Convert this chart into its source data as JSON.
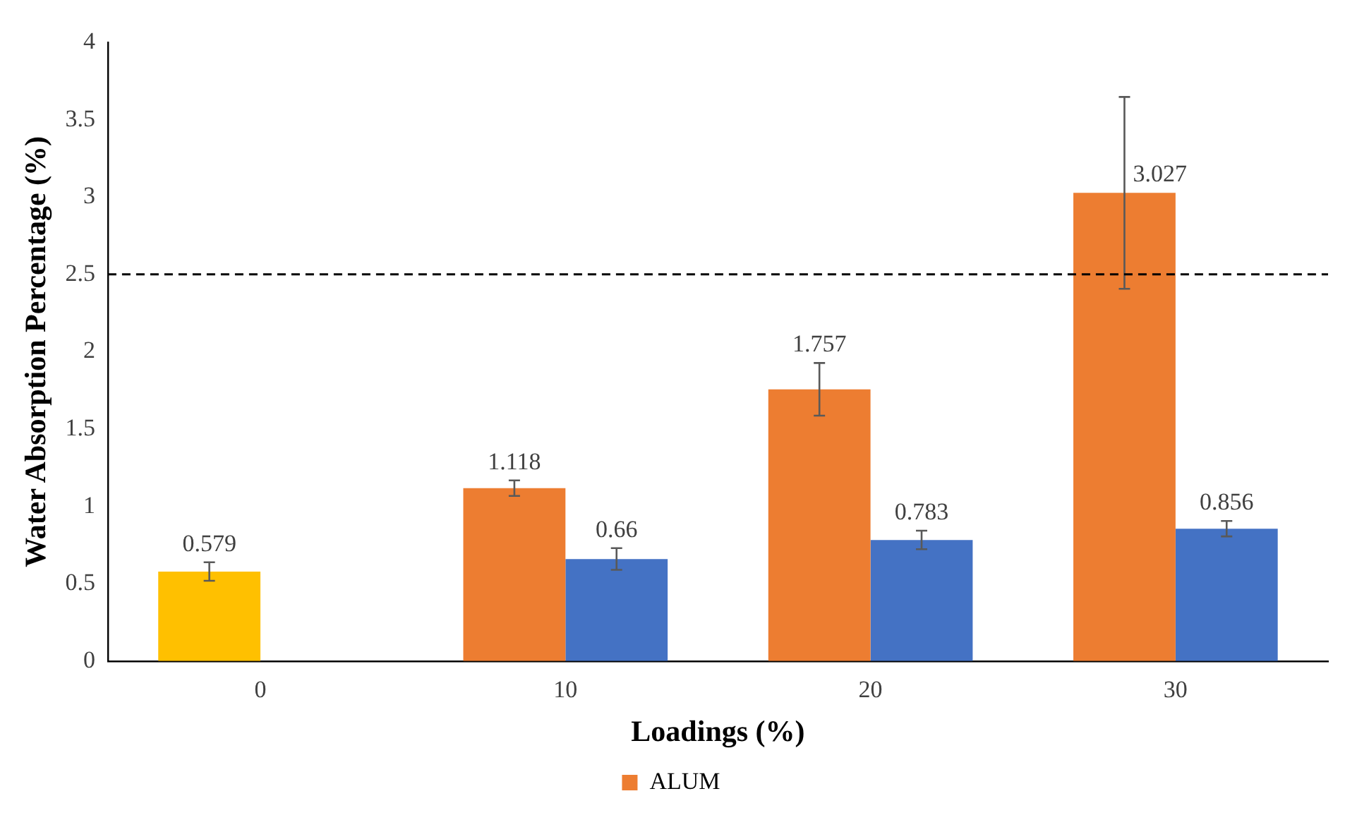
{
  "chart_data": {
    "type": "bar",
    "xlabel": "Loadings (%)",
    "ylabel": "Water Absorption Percentage (%)",
    "categories": [
      "0",
      "10",
      "20",
      "30"
    ],
    "series": [
      {
        "name": "ALUM",
        "color": "#ed7d31",
        "colors": [
          "#ffc000",
          "#ed7d31",
          "#ed7d31",
          "#ed7d31"
        ],
        "values": [
          0.579,
          1.118,
          1.757,
          3.027
        ],
        "errors": [
          0.06,
          0.05,
          0.17,
          0.62
        ]
      },
      {
        "color": "#4472c4",
        "values": [
          null,
          0.66,
          0.783,
          0.856
        ],
        "errors": [
          null,
          0.07,
          0.06,
          0.05
        ]
      }
    ],
    "ylim": [
      0,
      4
    ],
    "yticks": [
      0,
      0.5,
      1,
      1.5,
      2,
      2.5,
      3,
      3.5,
      4
    ],
    "grid": false,
    "legend": "bottom",
    "data_labels": true,
    "ref_lines": [
      {
        "axis": "y",
        "value": 2.5,
        "color": "#000000",
        "line_style": "dashed"
      }
    ]
  }
}
